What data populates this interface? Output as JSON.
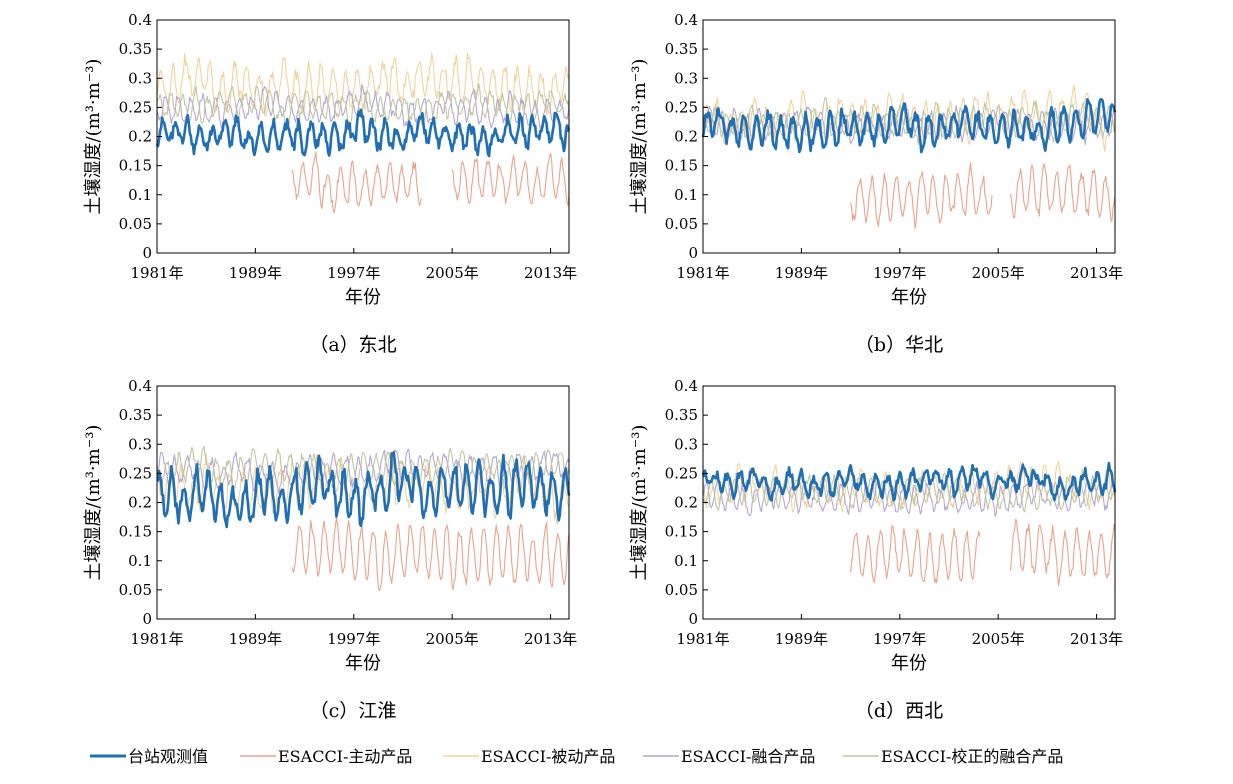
{
  "series_styles": [
    {
      "key": "obs",
      "color": "#1f6fb5",
      "width": 2.6
    },
    {
      "key": "active",
      "color": "#e8a48a",
      "width": 1.1
    },
    {
      "key": "passive",
      "color": "#f1d39a",
      "width": 1.1
    },
    {
      "key": "combined",
      "color": "#b6a6d3",
      "width": 1.1
    },
    {
      "key": "adjusted",
      "color": "#bfc89c",
      "width": 1.1
    }
  ],
  "legend": [
    {
      "label": "台站观测值",
      "color": "#1f6fb5"
    },
    {
      "label": "ESACCI-主动产品",
      "color": "#e8a48a"
    },
    {
      "label": "ESACCI-被动产品",
      "color": "#f1d39a"
    },
    {
      "label": "ESACCI-融合产品",
      "color": "#b6a6d3"
    },
    {
      "label": "ESACCI-校正的融合产品",
      "color": "#bfc89c"
    }
  ],
  "chart_data": [
    {
      "type": "line",
      "caption": "（a）东北",
      "xlabel": "年份",
      "ylabel": "土壤湿度/(m³·m⁻³)",
      "xticks": [
        "1981年",
        "1989年",
        "1997年",
        "2005年",
        "2013年"
      ],
      "yticks": [
        "0",
        "0.05",
        "0.1",
        "0.15",
        "0.2",
        "0.25",
        "0.3",
        "0.35",
        "0.4"
      ],
      "xlim": [
        1981,
        2014.5
      ],
      "ylim": [
        0,
        0.4
      ],
      "series_params": {
        "obs": {
          "start": 1981,
          "end": 2014.5,
          "base": 0.205,
          "amp": 0.02,
          "noise": 0.015,
          "seed": 11
        },
        "active": {
          "start": 1992,
          "end": 2014.5,
          "base": 0.125,
          "amp": 0.03,
          "noise": 0.015,
          "seed": 21,
          "gap": [
            2002.5,
            2005
          ]
        },
        "passive": {
          "start": 1981,
          "end": 2014.5,
          "base": 0.285,
          "amp": 0.03,
          "noise": 0.02,
          "seed": 31
        },
        "combined": {
          "start": 1981,
          "end": 2014.5,
          "base": 0.245,
          "amp": 0.02,
          "noise": 0.012,
          "seed": 41
        },
        "adjusted": {
          "start": 1981,
          "end": 2014.5,
          "base": 0.25,
          "amp": 0.02,
          "noise": 0.012,
          "seed": 51
        }
      }
    },
    {
      "type": "line",
      "caption": "（b）华北",
      "xlabel": "年份",
      "ylabel": "土壤湿度/(m³·m⁻³)",
      "xticks": [
        "1981年",
        "1989年",
        "1997年",
        "2005年",
        "2013年"
      ],
      "yticks": [
        "0",
        "0.05",
        "0.1",
        "0.15",
        "0.2",
        "0.25",
        "0.3",
        "0.35",
        "0.4"
      ],
      "xlim": [
        1981,
        2014.5
      ],
      "ylim": [
        0,
        0.4
      ],
      "series_params": {
        "obs": {
          "start": 1981,
          "end": 2014.5,
          "base": 0.215,
          "amp": 0.025,
          "noise": 0.015,
          "seed": 12
        },
        "active": {
          "start": 1993,
          "end": 2014.5,
          "base": 0.1,
          "amp": 0.035,
          "noise": 0.015,
          "seed": 22,
          "gap": [
            2004.5,
            2006
          ]
        },
        "passive": {
          "start": 1981,
          "end": 2014.5,
          "base": 0.235,
          "amp": 0.025,
          "noise": 0.015,
          "seed": 32
        },
        "combined": {
          "start": 1981,
          "end": 2014.5,
          "base": 0.22,
          "amp": 0.02,
          "noise": 0.012,
          "seed": 42
        },
        "adjusted": {
          "start": 1981,
          "end": 2014.5,
          "base": 0.225,
          "amp": 0.02,
          "noise": 0.012,
          "seed": 52
        }
      }
    },
    {
      "type": "line",
      "caption": "（c）江淮",
      "xlabel": "年份",
      "ylabel": "土壤湿度/(m³·m⁻³)",
      "xticks": [
        "1981年",
        "1989年",
        "1997年",
        "2005年",
        "2013年"
      ],
      "yticks": [
        "0",
        "0.05",
        "0.1",
        "0.15",
        "0.2",
        "0.25",
        "0.3",
        "0.35",
        "0.4"
      ],
      "xlim": [
        1981,
        2014.5
      ],
      "ylim": [
        0,
        0.4
      ],
      "series_params": {
        "obs": {
          "start": 1981,
          "end": 2014.5,
          "base": 0.215,
          "amp": 0.035,
          "noise": 0.02,
          "seed": 13
        },
        "active": {
          "start": 1992,
          "end": 2014.5,
          "base": 0.115,
          "amp": 0.045,
          "noise": 0.015,
          "seed": 23
        },
        "passive": {
          "start": 1981,
          "end": 2014.5,
          "base": 0.225,
          "amp": 0.03,
          "noise": 0.02,
          "seed": 33
        },
        "combined": {
          "start": 1981,
          "end": 2014.5,
          "base": 0.255,
          "amp": 0.02,
          "noise": 0.012,
          "seed": 43
        },
        "adjusted": {
          "start": 1981,
          "end": 2014.5,
          "base": 0.26,
          "amp": 0.022,
          "noise": 0.012,
          "seed": 53
        }
      }
    },
    {
      "type": "line",
      "caption": "（d）西北",
      "xlabel": "年份",
      "ylabel": "土壤湿度/(m³·m⁻³)",
      "xticks": [
        "1981年",
        "1989年",
        "1997年",
        "2005年",
        "2013年"
      ],
      "yticks": [
        "0",
        "0.05",
        "0.1",
        "0.15",
        "0.2",
        "0.25",
        "0.3",
        "0.35",
        "0.4"
      ],
      "xlim": [
        1981,
        2014.5
      ],
      "ylim": [
        0,
        0.4
      ],
      "series_params": {
        "obs": {
          "start": 1981,
          "end": 2014.5,
          "base": 0.235,
          "amp": 0.015,
          "noise": 0.012,
          "seed": 14
        },
        "active": {
          "start": 1993,
          "end": 2014.5,
          "base": 0.11,
          "amp": 0.04,
          "noise": 0.015,
          "seed": 24,
          "gap": [
            2003.5,
            2006
          ]
        },
        "passive": {
          "start": 1981,
          "end": 2014.5,
          "base": 0.23,
          "amp": 0.02,
          "noise": 0.015,
          "seed": 34
        },
        "combined": {
          "start": 1981,
          "end": 2014.5,
          "base": 0.21,
          "amp": 0.02,
          "noise": 0.01,
          "seed": 44
        },
        "adjusted": {
          "start": 1981,
          "end": 2014.5,
          "base": 0.215,
          "amp": 0.02,
          "noise": 0.01,
          "seed": 54
        }
      }
    }
  ]
}
